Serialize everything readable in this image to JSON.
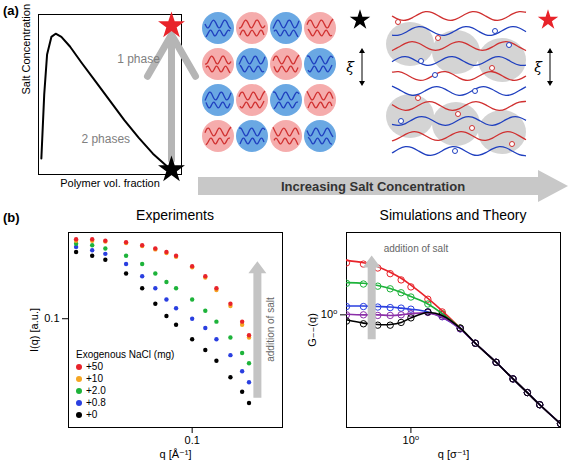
{
  "chart_data": [
    {
      "type": "line",
      "panel_label": "(a)",
      "xlabel": "Polymer vol. fraction",
      "ylabel": "Salt Concentration",
      "x": [
        0.02,
        0.04,
        0.06,
        0.09,
        0.12,
        0.16,
        0.22,
        0.3,
        0.4,
        0.5,
        0.6,
        0.7,
        0.8,
        0.9,
        0.96
      ],
      "values": [
        0.1,
        0.5,
        0.75,
        0.86,
        0.88,
        0.86,
        0.8,
        0.7,
        0.58,
        0.46,
        0.34,
        0.23,
        0.13,
        0.05,
        0.02
      ],
      "color": "#000000",
      "xlim": [
        0,
        1
      ],
      "ylim": [
        0,
        1
      ],
      "tick_labels": false,
      "annotations": [
        "1 phase",
        "2 phases"
      ],
      "points": [
        {
          "x": 0.93,
          "y": 0.03,
          "color": "#000000",
          "marker": "star"
        },
        {
          "x": 0.93,
          "y": 0.93,
          "color": "#e8232a",
          "marker": "star"
        }
      ]
    },
    {
      "type": "scatter",
      "panel_label": "(b)",
      "title": "Experiments",
      "xlabel": "q [Å⁻¹]",
      "ylabel": "I(q) [a.u.]",
      "log": true,
      "xlim": [
        0.018,
        0.35
      ],
      "ylim": [
        0.015,
        0.45
      ],
      "xticks": [
        0.1
      ],
      "yticks": [
        0.1
      ],
      "legend": "bottom-left",
      "legend_title": "Exogenous NaCl (mg)",
      "annotation": "addition of salt",
      "x": [
        0.02,
        0.025,
        0.03,
        0.04,
        0.05,
        0.06,
        0.07,
        0.08,
        0.1,
        0.12,
        0.14,
        0.17,
        0.2,
        0.22
      ],
      "series": [
        {
          "name": "+50",
          "color": "#e8232a",
          "marker": "circle",
          "values": [
            0.4,
            0.4,
            0.39,
            0.38,
            0.36,
            0.34,
            0.32,
            0.3,
            0.25,
            0.21,
            0.17,
            0.13,
            0.095,
            0.075
          ]
        },
        {
          "name": "+10",
          "color": "#f5a623",
          "marker": "circle",
          "values": [
            0.39,
            0.39,
            0.385,
            0.375,
            0.355,
            0.335,
            0.315,
            0.295,
            0.245,
            0.205,
            0.165,
            0.125,
            0.09,
            0.072
          ]
        },
        {
          "name": "+2.0",
          "color": "#1db33a",
          "marker": "circle",
          "values": [
            0.37,
            0.36,
            0.34,
            0.3,
            0.26,
            0.22,
            0.19,
            0.17,
            0.14,
            0.115,
            0.095,
            0.072,
            0.055,
            0.046
          ]
        },
        {
          "name": "+0.8",
          "color": "#2a3fe0",
          "marker": "circle",
          "values": [
            0.35,
            0.33,
            0.31,
            0.26,
            0.21,
            0.17,
            0.14,
            0.12,
            0.1,
            0.085,
            0.07,
            0.053,
            0.04,
            0.033
          ]
        },
        {
          "name": "+0",
          "color": "#000000",
          "marker": "circle",
          "values": [
            0.32,
            0.3,
            0.28,
            0.22,
            0.17,
            0.13,
            0.105,
            0.09,
            0.07,
            0.058,
            0.048,
            0.036,
            0.028,
            0.023
          ]
        }
      ]
    },
    {
      "type": "scatter",
      "title": "Simulations and Theory",
      "xlabel": "q [σ⁻¹]",
      "ylabel": "G₋₋(q)",
      "log": true,
      "xlim": [
        0.5,
        5
      ],
      "ylim": [
        0.15,
        4
      ],
      "xticks": [
        {
          "value": 1,
          "label": "10⁰"
        }
      ],
      "yticks": [
        {
          "value": 1,
          "label": "10⁰"
        }
      ],
      "annotation": "addition of salt",
      "x": [
        0.5,
        0.6,
        0.7,
        0.8,
        0.9,
        1.0,
        1.2,
        1.4,
        1.7,
        2.0,
        2.5,
        3.0,
        3.5,
        4.0,
        5.0
      ],
      "series": [
        {
          "color": "#e8232a",
          "marker": "circle-open",
          "values": [
            2.4,
            2.35,
            2.2,
            2.0,
            1.8,
            1.6,
            1.3,
            1.05,
            0.8,
            0.62,
            0.45,
            0.34,
            0.27,
            0.22,
            0.16
          ]
        },
        {
          "color": "#1db33a",
          "marker": "circle-open",
          "values": [
            1.7,
            1.68,
            1.62,
            1.55,
            1.45,
            1.35,
            1.2,
            1.02,
            0.8,
            0.62,
            0.45,
            0.34,
            0.27,
            0.22,
            0.16
          ]
        },
        {
          "color": "#2a3fe0",
          "marker": "circle-open",
          "values": [
            1.15,
            1.15,
            1.14,
            1.13,
            1.12,
            1.1,
            1.05,
            0.97,
            0.79,
            0.62,
            0.45,
            0.34,
            0.27,
            0.22,
            0.16
          ]
        },
        {
          "color": "#8b2fa8",
          "marker": "circle-open",
          "values": [
            1.0,
            1.0,
            0.99,
            0.99,
            1.0,
            1.02,
            1.04,
            0.97,
            0.79,
            0.62,
            0.45,
            0.34,
            0.27,
            0.22,
            0.16
          ]
        },
        {
          "color": "#000000",
          "marker": "circle-open",
          "values": [
            0.9,
            0.86,
            0.84,
            0.84,
            0.88,
            0.95,
            1.05,
            1.0,
            0.8,
            0.62,
            0.45,
            0.34,
            0.27,
            0.22,
            0.16
          ]
        },
        {
          "type": "line",
          "color": "#e8232a",
          "values": [
            2.5,
            2.4,
            2.25,
            2.05,
            1.85,
            1.65,
            1.32,
            1.07,
            0.8,
            0.62,
            0.45,
            0.34,
            0.27,
            0.22,
            0.16
          ]
        },
        {
          "type": "line",
          "color": "#1db33a",
          "values": [
            1.72,
            1.7,
            1.64,
            1.56,
            1.46,
            1.36,
            1.2,
            1.02,
            0.8,
            0.62,
            0.45,
            0.34,
            0.27,
            0.22,
            0.16
          ]
        },
        {
          "type": "line",
          "color": "#2a3fe0",
          "values": [
            1.16,
            1.16,
            1.15,
            1.14,
            1.12,
            1.1,
            1.05,
            0.96,
            0.79,
            0.62,
            0.45,
            0.34,
            0.27,
            0.22,
            0.16
          ]
        },
        {
          "type": "line",
          "color": "#8b2fa8",
          "values": [
            1.01,
            1.0,
            1.0,
            0.99,
            1.0,
            1.02,
            1.03,
            0.96,
            0.79,
            0.62,
            0.45,
            0.34,
            0.27,
            0.22,
            0.16
          ]
        },
        {
          "type": "line",
          "color": "#000000",
          "values": [
            0.92,
            0.87,
            0.85,
            0.85,
            0.88,
            0.95,
            1.04,
            0.99,
            0.8,
            0.62,
            0.45,
            0.34,
            0.27,
            0.22,
            0.16
          ]
        }
      ]
    }
  ],
  "diagram": {
    "xi": "ξ",
    "arrow_text": "Increasing Salt Concentration"
  }
}
